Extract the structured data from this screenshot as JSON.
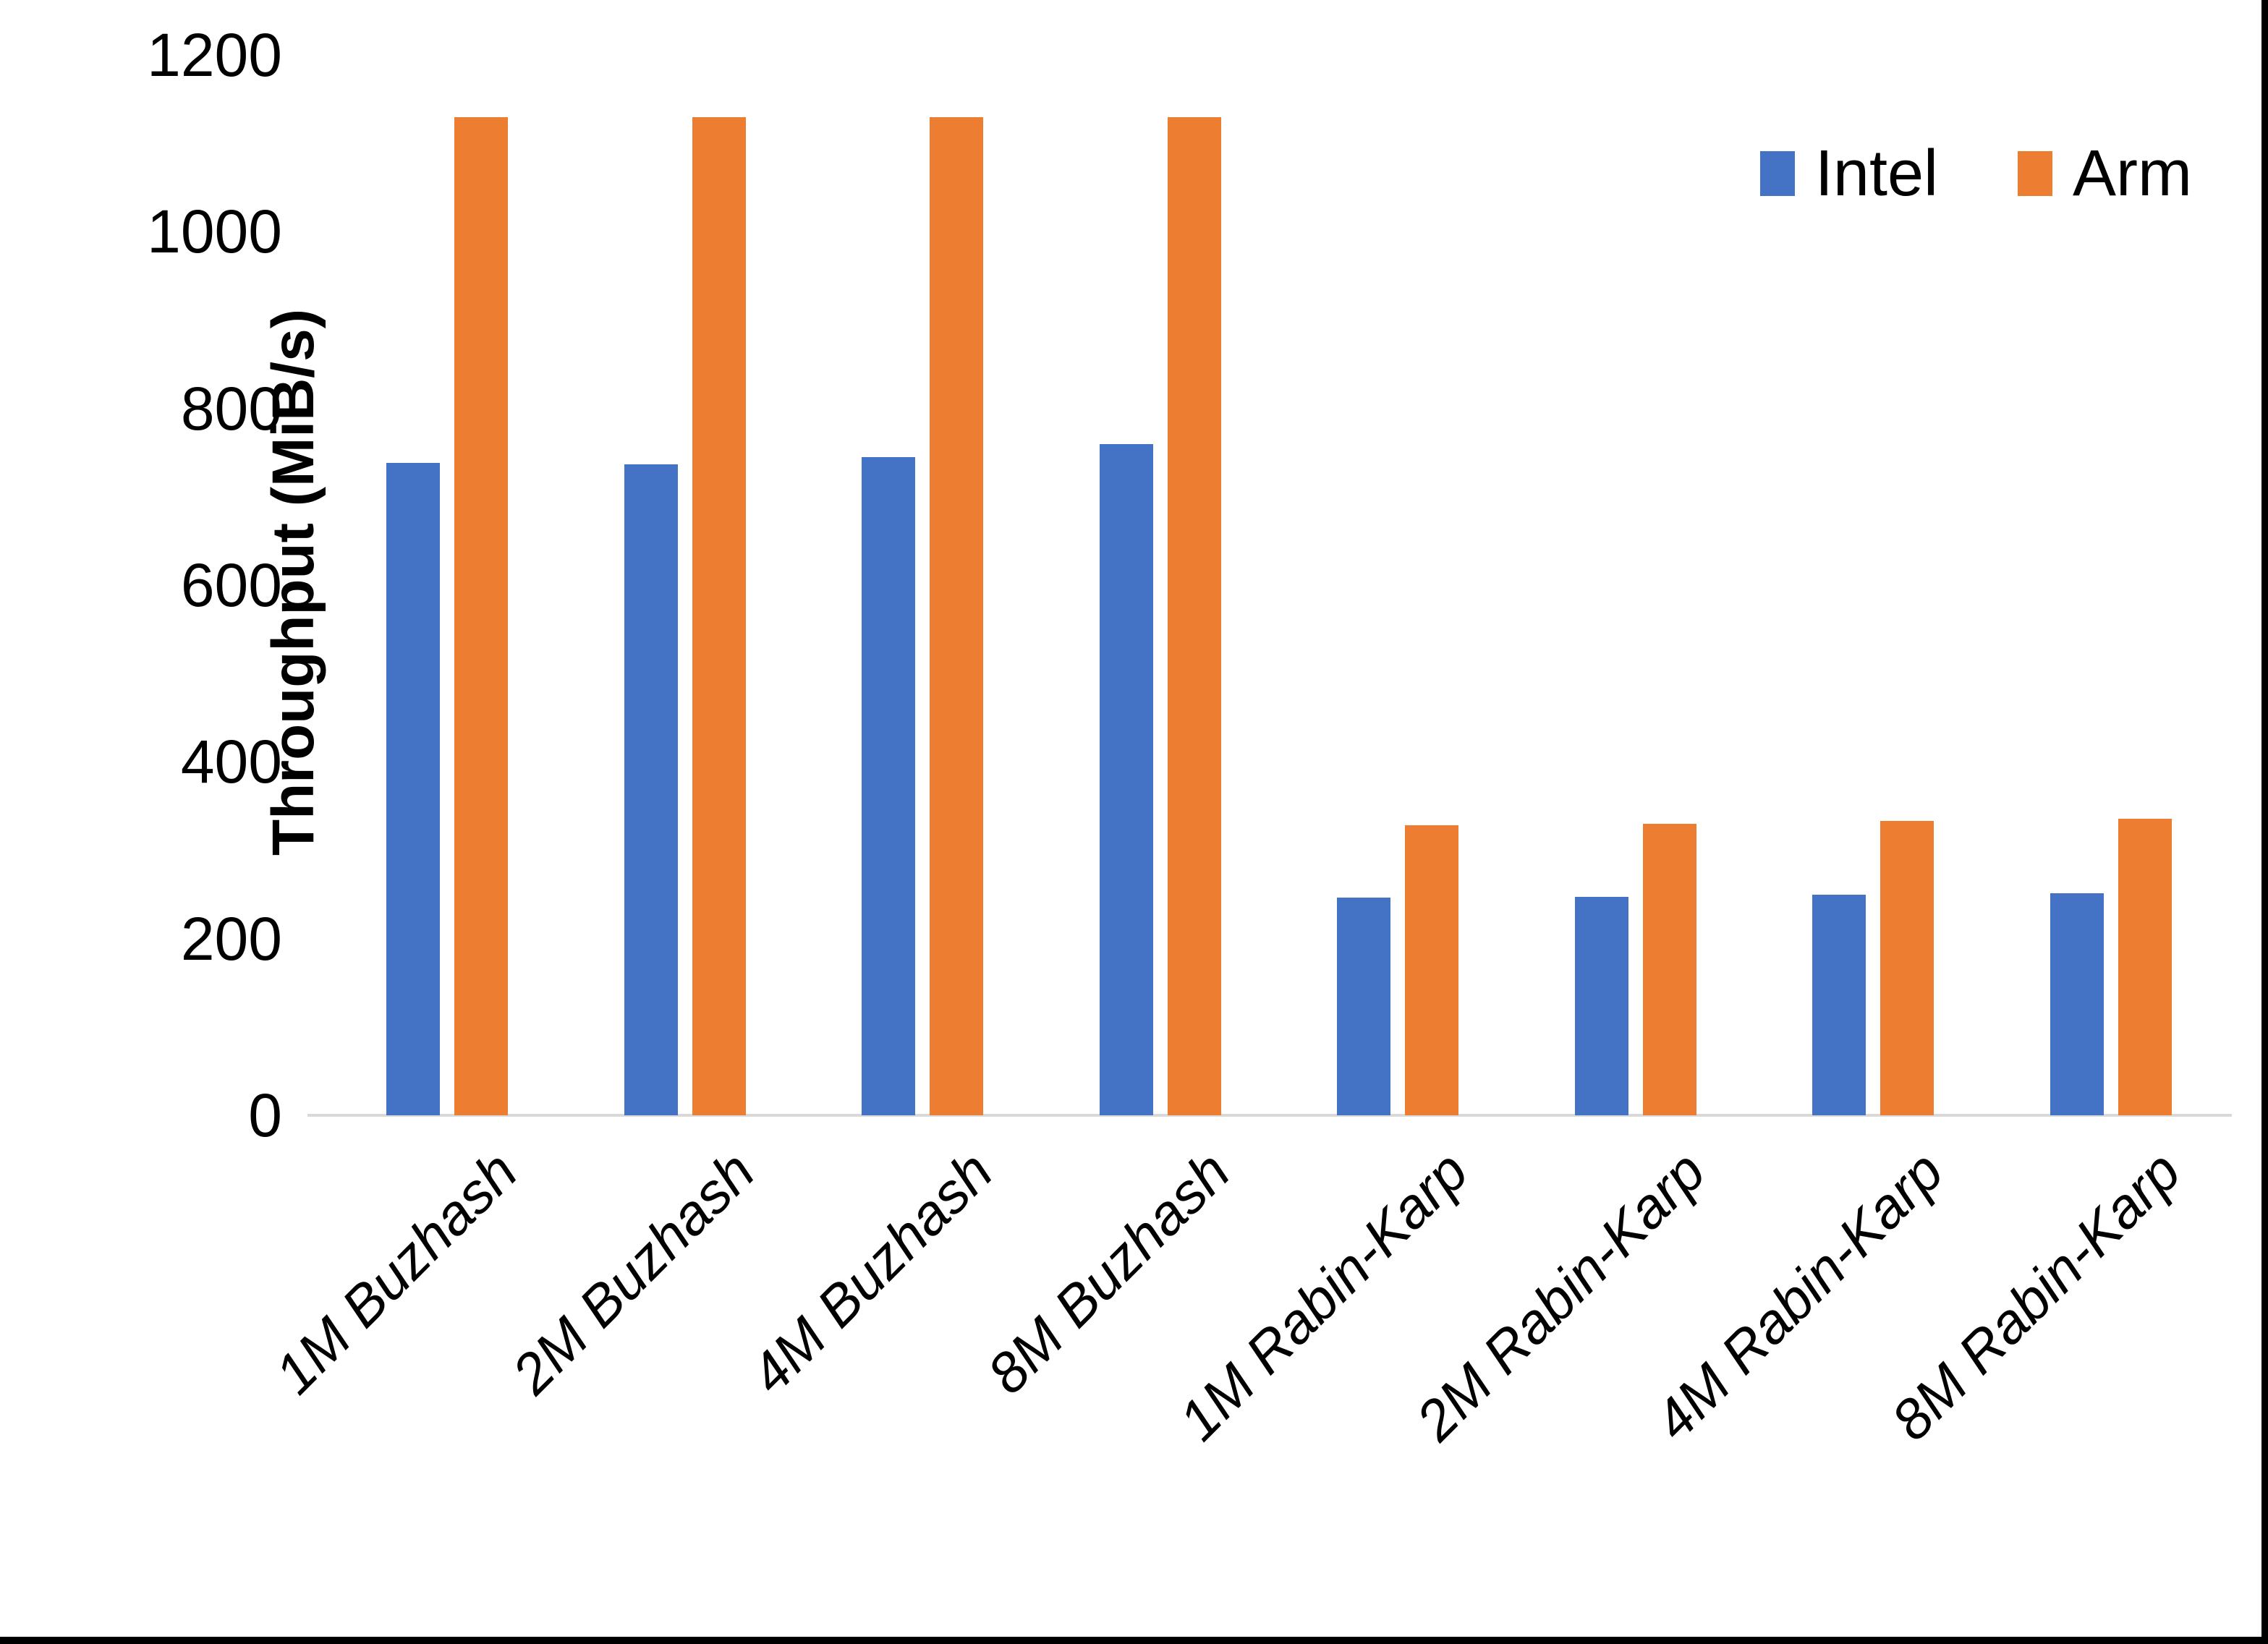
{
  "chart_data": {
    "type": "bar",
    "title": "",
    "categories": [
      "1M Buzhash",
      "2M Buzhash",
      "4M Buzhash",
      "8M Buzhash",
      "1M Rabin-Karp",
      "2M Rabin-Karp",
      "4M Rabin-Karp",
      "8M Rabin-Karp"
    ],
    "series": [
      {
        "name": "Intel",
        "color": "#4472C4",
        "values": [
          738,
          737,
          745,
          760,
          246,
          247,
          250,
          251
        ]
      },
      {
        "name": "Arm",
        "color": "#ED7D31",
        "values": [
          1130,
          1130,
          1130,
          1130,
          328,
          330,
          333,
          336
        ]
      }
    ],
    "xlabel": "",
    "ylabel": "Throughput (MiB/s)",
    "ylim": [
      0,
      1200
    ],
    "yticks": [
      0,
      200,
      400,
      600,
      800,
      1000,
      1200
    ],
    "grid": false,
    "legend_position": "top-right"
  },
  "legend": {
    "items": [
      {
        "label": "Intel",
        "color": "#4472C4"
      },
      {
        "label": "Arm",
        "color": "#ED7D31"
      }
    ]
  },
  "colors": {
    "background": "#FFFFFF",
    "axis_line": "#D9D9D9",
    "text": "#000000",
    "frame": "#000000",
    "intel": "#4472C4",
    "arm": "#ED7D31"
  }
}
